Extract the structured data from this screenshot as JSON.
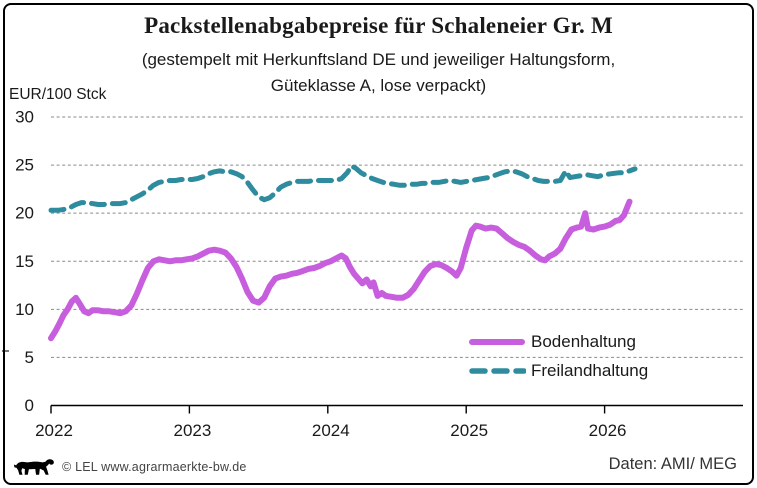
{
  "header": {
    "title": "Packstellenabgabepreise für Schaleneier Gr. M",
    "subtitle_line1": "(gestempelt mit Herkunftsland DE und jeweiliger Haltungsform,",
    "subtitle_line2": "Güteklasse A, lose verpackt)"
  },
  "chart_data": {
    "type": "line",
    "title": "Packstellenabgabepreise für Schaleneier Gr. M",
    "subtitle": "(gestempelt mit Herkunftsland DE und jeweiliger Haltungsform, Güteklasse A, lose verpackt)",
    "ylabel": "EUR/100 Stck",
    "xlabel": "",
    "ylim": [
      0,
      30
    ],
    "xlim": [
      2022,
      2027
    ],
    "yticks": [
      0,
      5,
      10,
      15,
      20,
      25,
      30
    ],
    "xticks": [
      2022,
      2023,
      2024,
      2025,
      2026
    ],
    "grid": "horizontal-dashed",
    "grid_color": "#8a8a8a",
    "axis_color": "#000000",
    "legend_position": "inside-bottom-right",
    "series": [
      {
        "name": "Bodenhaltung",
        "color": "#c75edd",
        "style": "solid",
        "points": [
          [
            2022.0,
            7.0
          ],
          [
            2022.03,
            7.7
          ],
          [
            2022.06,
            8.5
          ],
          [
            2022.09,
            9.4
          ],
          [
            2022.12,
            10.0
          ],
          [
            2022.15,
            10.8
          ],
          [
            2022.18,
            11.2
          ],
          [
            2022.21,
            10.5
          ],
          [
            2022.24,
            9.8
          ],
          [
            2022.27,
            9.6
          ],
          [
            2022.3,
            9.9
          ],
          [
            2022.34,
            9.9
          ],
          [
            2022.38,
            9.8
          ],
          [
            2022.42,
            9.8
          ],
          [
            2022.46,
            9.7
          ],
          [
            2022.5,
            9.6
          ],
          [
            2022.54,
            9.8
          ],
          [
            2022.58,
            10.4
          ],
          [
            2022.62,
            11.6
          ],
          [
            2022.66,
            13.0
          ],
          [
            2022.7,
            14.3
          ],
          [
            2022.74,
            15.0
          ],
          [
            2022.78,
            15.2
          ],
          [
            2022.82,
            15.1
          ],
          [
            2022.86,
            15.0
          ],
          [
            2022.9,
            15.1
          ],
          [
            2022.94,
            15.1
          ],
          [
            2022.98,
            15.2
          ],
          [
            2023.02,
            15.3
          ],
          [
            2023.06,
            15.5
          ],
          [
            2023.1,
            15.8
          ],
          [
            2023.14,
            16.1
          ],
          [
            2023.18,
            16.2
          ],
          [
            2023.22,
            16.1
          ],
          [
            2023.26,
            15.9
          ],
          [
            2023.3,
            15.3
          ],
          [
            2023.34,
            14.4
          ],
          [
            2023.38,
            13.2
          ],
          [
            2023.42,
            11.8
          ],
          [
            2023.46,
            10.9
          ],
          [
            2023.5,
            10.7
          ],
          [
            2023.54,
            11.2
          ],
          [
            2023.58,
            12.4
          ],
          [
            2023.62,
            13.2
          ],
          [
            2023.66,
            13.4
          ],
          [
            2023.7,
            13.5
          ],
          [
            2023.74,
            13.7
          ],
          [
            2023.78,
            13.8
          ],
          [
            2023.82,
            14.0
          ],
          [
            2023.86,
            14.2
          ],
          [
            2023.9,
            14.3
          ],
          [
            2023.94,
            14.5
          ],
          [
            2023.98,
            14.8
          ],
          [
            2024.02,
            15.0
          ],
          [
            2024.06,
            15.3
          ],
          [
            2024.1,
            15.6
          ],
          [
            2024.13,
            15.3
          ],
          [
            2024.16,
            14.4
          ],
          [
            2024.19,
            13.7
          ],
          [
            2024.22,
            13.2
          ],
          [
            2024.25,
            12.7
          ],
          [
            2024.28,
            13.1
          ],
          [
            2024.31,
            12.4
          ],
          [
            2024.33,
            12.8
          ],
          [
            2024.36,
            11.4
          ],
          [
            2024.39,
            11.7
          ],
          [
            2024.42,
            11.4
          ],
          [
            2024.46,
            11.3
          ],
          [
            2024.5,
            11.2
          ],
          [
            2024.54,
            11.2
          ],
          [
            2024.58,
            11.5
          ],
          [
            2024.62,
            12.1
          ],
          [
            2024.66,
            13.0
          ],
          [
            2024.7,
            13.9
          ],
          [
            2024.74,
            14.5
          ],
          [
            2024.78,
            14.7
          ],
          [
            2024.82,
            14.6
          ],
          [
            2024.86,
            14.3
          ],
          [
            2024.9,
            13.9
          ],
          [
            2024.93,
            13.5
          ],
          [
            2024.96,
            14.3
          ],
          [
            2025.0,
            16.4
          ],
          [
            2025.04,
            18.2
          ],
          [
            2025.07,
            18.7
          ],
          [
            2025.1,
            18.6
          ],
          [
            2025.14,
            18.4
          ],
          [
            2025.18,
            18.5
          ],
          [
            2025.22,
            18.4
          ],
          [
            2025.26,
            17.9
          ],
          [
            2025.3,
            17.4
          ],
          [
            2025.34,
            17.0
          ],
          [
            2025.38,
            16.7
          ],
          [
            2025.42,
            16.5
          ],
          [
            2025.46,
            16.1
          ],
          [
            2025.5,
            15.6
          ],
          [
            2025.54,
            15.2
          ],
          [
            2025.57,
            15.1
          ],
          [
            2025.6,
            15.5
          ],
          [
            2025.64,
            15.8
          ],
          [
            2025.68,
            16.3
          ],
          [
            2025.72,
            17.4
          ],
          [
            2025.76,
            18.3
          ],
          [
            2025.8,
            18.5
          ],
          [
            2025.83,
            18.6
          ],
          [
            2025.86,
            20.0
          ],
          [
            2025.88,
            18.4
          ],
          [
            2025.92,
            18.3
          ],
          [
            2025.96,
            18.5
          ],
          [
            2026.0,
            18.6
          ],
          [
            2026.04,
            18.8
          ],
          [
            2026.08,
            19.2
          ],
          [
            2026.11,
            19.3
          ],
          [
            2026.14,
            19.8
          ],
          [
            2026.18,
            21.2
          ]
        ]
      },
      {
        "name": "Freilandhaltung",
        "color": "#2e8c9e",
        "style": "dashed",
        "points": [
          [
            2022.0,
            20.3
          ],
          [
            2022.05,
            20.3
          ],
          [
            2022.1,
            20.4
          ],
          [
            2022.14,
            20.6
          ],
          [
            2022.18,
            20.9
          ],
          [
            2022.22,
            21.1
          ],
          [
            2022.26,
            21.1
          ],
          [
            2022.3,
            21.0
          ],
          [
            2022.34,
            20.9
          ],
          [
            2022.38,
            20.9
          ],
          [
            2022.42,
            21.0
          ],
          [
            2022.46,
            21.0
          ],
          [
            2022.5,
            21.0
          ],
          [
            2022.54,
            21.1
          ],
          [
            2022.58,
            21.4
          ],
          [
            2022.62,
            21.7
          ],
          [
            2022.66,
            22.0
          ],
          [
            2022.7,
            22.4
          ],
          [
            2022.74,
            22.9
          ],
          [
            2022.78,
            23.2
          ],
          [
            2022.82,
            23.3
          ],
          [
            2022.86,
            23.4
          ],
          [
            2022.9,
            23.4
          ],
          [
            2022.94,
            23.5
          ],
          [
            2022.98,
            23.5
          ],
          [
            2023.02,
            23.5
          ],
          [
            2023.06,
            23.6
          ],
          [
            2023.1,
            23.8
          ],
          [
            2023.14,
            24.1
          ],
          [
            2023.18,
            24.3
          ],
          [
            2023.22,
            24.4
          ],
          [
            2023.26,
            24.3
          ],
          [
            2023.3,
            24.3
          ],
          [
            2023.34,
            24.1
          ],
          [
            2023.38,
            23.8
          ],
          [
            2023.42,
            23.2
          ],
          [
            2023.46,
            22.4
          ],
          [
            2023.5,
            21.7
          ],
          [
            2023.54,
            21.4
          ],
          [
            2023.58,
            21.6
          ],
          [
            2023.62,
            22.1
          ],
          [
            2023.66,
            22.7
          ],
          [
            2023.7,
            23.0
          ],
          [
            2023.74,
            23.2
          ],
          [
            2023.78,
            23.3
          ],
          [
            2023.82,
            23.3
          ],
          [
            2023.86,
            23.3
          ],
          [
            2023.9,
            23.4
          ],
          [
            2023.94,
            23.4
          ],
          [
            2023.98,
            23.4
          ],
          [
            2024.02,
            23.4
          ],
          [
            2024.06,
            23.4
          ],
          [
            2024.1,
            23.6
          ],
          [
            2024.14,
            24.2
          ],
          [
            2024.17,
            24.9
          ],
          [
            2024.2,
            24.7
          ],
          [
            2024.24,
            24.2
          ],
          [
            2024.28,
            23.9
          ],
          [
            2024.32,
            23.6
          ],
          [
            2024.36,
            23.4
          ],
          [
            2024.4,
            23.2
          ],
          [
            2024.44,
            23.1
          ],
          [
            2024.48,
            23.0
          ],
          [
            2024.52,
            22.9
          ],
          [
            2024.56,
            22.9
          ],
          [
            2024.6,
            23.0
          ],
          [
            2024.64,
            23.0
          ],
          [
            2024.68,
            23.1
          ],
          [
            2024.72,
            23.1
          ],
          [
            2024.76,
            23.2
          ],
          [
            2024.8,
            23.2
          ],
          [
            2024.84,
            23.3
          ],
          [
            2024.88,
            23.4
          ],
          [
            2024.92,
            23.3
          ],
          [
            2024.96,
            23.2
          ],
          [
            2025.0,
            23.3
          ],
          [
            2025.04,
            23.4
          ],
          [
            2025.08,
            23.5
          ],
          [
            2025.12,
            23.6
          ],
          [
            2025.16,
            23.7
          ],
          [
            2025.2,
            23.9
          ],
          [
            2025.24,
            24.1
          ],
          [
            2025.28,
            24.3
          ],
          [
            2025.32,
            24.4
          ],
          [
            2025.36,
            24.3
          ],
          [
            2025.4,
            24.1
          ],
          [
            2025.44,
            23.8
          ],
          [
            2025.48,
            23.6
          ],
          [
            2025.52,
            23.4
          ],
          [
            2025.56,
            23.3
          ],
          [
            2025.6,
            23.3
          ],
          [
            2025.64,
            23.3
          ],
          [
            2025.68,
            23.4
          ],
          [
            2025.72,
            24.4
          ],
          [
            2025.75,
            23.7
          ],
          [
            2025.79,
            23.8
          ],
          [
            2025.83,
            23.9
          ],
          [
            2025.87,
            24.0
          ],
          [
            2025.91,
            23.9
          ],
          [
            2025.95,
            23.8
          ],
          [
            2026.0,
            24.0
          ],
          [
            2026.05,
            24.1
          ],
          [
            2026.1,
            24.2
          ],
          [
            2026.14,
            24.2
          ],
          [
            2026.18,
            24.4
          ],
          [
            2026.22,
            24.6
          ]
        ]
      }
    ]
  },
  "legend": {
    "items": [
      "Bodenhaltung",
      "Freilandhaltung"
    ]
  },
  "footer": {
    "copyright": "© LEL www.agrarmaerkte-bw.de",
    "source": "Daten: AMI/ MEG"
  },
  "artifacts": {
    "stray_dash": ""
  }
}
